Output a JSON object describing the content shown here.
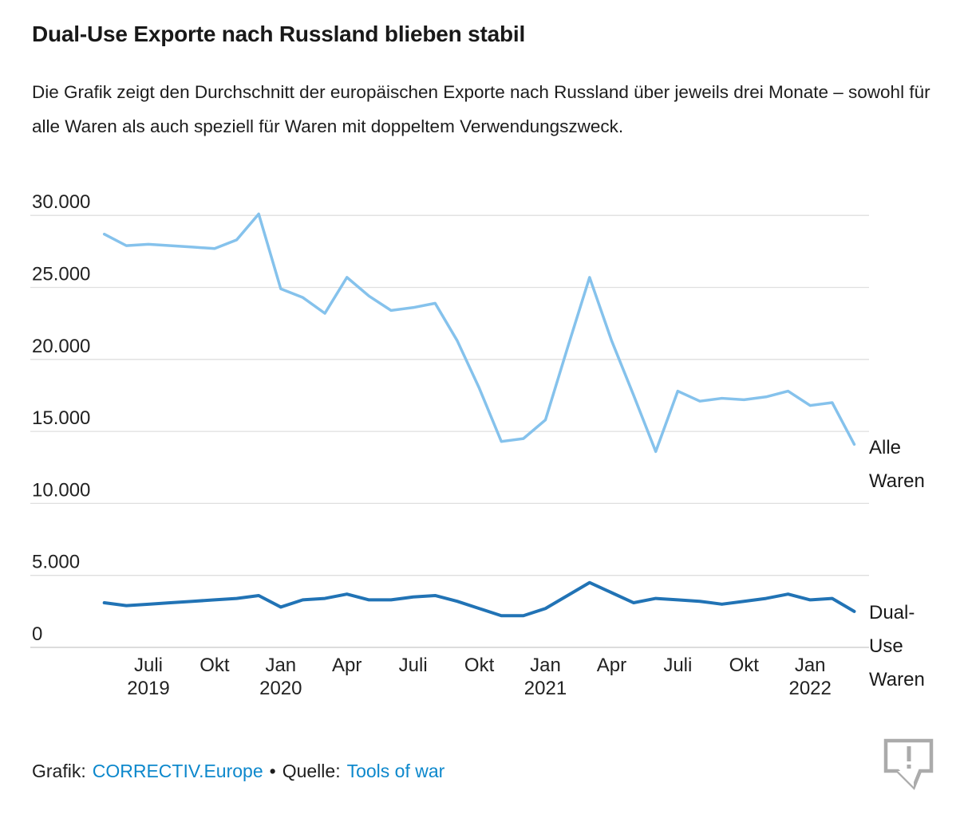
{
  "header": {
    "title": "Dual-Use Exporte nach Russland blieben stabil",
    "subtitle": "Die Grafik zeigt den Durchschnitt der europäischen Exporte nach Russland über jeweils drei Monate – sowohl für alle Waren als auch speziell für Waren mit doppeltem Verwendungszweck."
  },
  "colors": {
    "alle_waren_line": "#85c2ec",
    "dual_use_line": "#2173b5",
    "link_blue": "#0d88cc",
    "gridline": "#dfdfdf",
    "icon_gray": "#ababab"
  },
  "chart_data": {
    "type": "line",
    "title": "Dual-Use Exporte nach Russland blieben stabil",
    "xlabel": "",
    "ylabel": "",
    "ylim": [
      0,
      31500
    ],
    "grid": true,
    "legend_position": "right-of-line-end",
    "x_unit": "Monat (gleitender 3-Monats-Durchschnitt)",
    "months": [
      "Mai 2019",
      "Jun 2019",
      "Jul 2019",
      "Aug 2019",
      "Sep 2019",
      "Okt 2019",
      "Nov 2019",
      "Dez 2019",
      "Jan 2020",
      "Feb 2020",
      "Mär 2020",
      "Apr 2020",
      "Mai 2020",
      "Jun 2020",
      "Jul 2020",
      "Aug 2020",
      "Sep 2020",
      "Okt 2020",
      "Nov 2020",
      "Dez 2020",
      "Jan 2021",
      "Feb 2021",
      "Mär 2021",
      "Apr 2021",
      "Mai 2021",
      "Jun 2021",
      "Jul 2021",
      "Aug 2021",
      "Sep 2021",
      "Okt 2021",
      "Nov 2021",
      "Dez 2021",
      "Jan 2022",
      "Feb 2022",
      "Mär 2022"
    ],
    "series": [
      {
        "name": "Alle Waren",
        "label_lines": [
          "Alle",
          "Waren"
        ],
        "color": "#85c2ec",
        "values": [
          28700,
          27900,
          28000,
          27900,
          27800,
          27700,
          28300,
          30100,
          24900,
          24300,
          23200,
          25700,
          24400,
          23400,
          23600,
          23900,
          21300,
          18000,
          14300,
          14500,
          15800,
          20800,
          25700,
          21300,
          17500,
          13600,
          17800,
          17100,
          17300,
          17200,
          17400,
          17800,
          16800,
          17000,
          14100
        ]
      },
      {
        "name": "Dual-Use Waren",
        "label_lines": [
          "Dual-",
          "Use",
          "Waren"
        ],
        "color": "#2173b5",
        "values": [
          3100,
          2900,
          3000,
          3100,
          3200,
          3300,
          3400,
          3600,
          2800,
          3300,
          3400,
          3700,
          3300,
          3300,
          3500,
          3600,
          3200,
          2700,
          2200,
          2200,
          2700,
          3600,
          4500,
          3800,
          3100,
          3400,
          3300,
          3200,
          3000,
          3200,
          3400,
          3700,
          3300,
          3400,
          2500
        ]
      }
    ],
    "y_ticks": [
      {
        "label": "30.000",
        "value": 30000
      },
      {
        "label": "25.000",
        "value": 25000
      },
      {
        "label": "20.000",
        "value": 20000
      },
      {
        "label": "15.000",
        "value": 15000
      },
      {
        "label": "10.000",
        "value": 10000
      },
      {
        "label": "5.000",
        "value": 5000
      },
      {
        "label": "0",
        "value": 0
      }
    ],
    "x_ticks": [
      {
        "index": 2,
        "line1": "Juli",
        "line2": "2019"
      },
      {
        "index": 5,
        "line1": "Okt",
        "line2": ""
      },
      {
        "index": 8,
        "line1": "Jan",
        "line2": "2020"
      },
      {
        "index": 11,
        "line1": "Apr",
        "line2": ""
      },
      {
        "index": 14,
        "line1": "Juli",
        "line2": ""
      },
      {
        "index": 17,
        "line1": "Okt",
        "line2": ""
      },
      {
        "index": 20,
        "line1": "Jan",
        "line2": "2021"
      },
      {
        "index": 23,
        "line1": "Apr",
        "line2": ""
      },
      {
        "index": 26,
        "line1": "Juli",
        "line2": ""
      },
      {
        "index": 29,
        "line1": "Okt",
        "line2": ""
      },
      {
        "index": 32,
        "line1": "Jan",
        "line2": "2022"
      }
    ]
  },
  "footer": {
    "grafik_label": "Grafik:",
    "grafik_link": "CORRECTIV.Europe",
    "separator": "•",
    "quelle_label": "Quelle:",
    "quelle_link": "Tools of war",
    "feedback_icon": "speech-bubble-exclamation-icon"
  }
}
